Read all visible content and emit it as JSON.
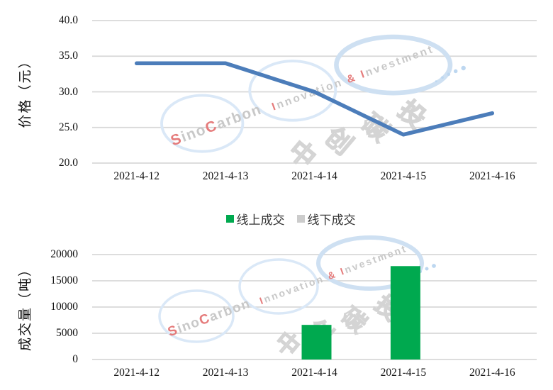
{
  "watermark": {
    "brand_en": "SinoCarbon",
    "tagline": "Innovation & Investment",
    "brand_cn": "中创碳投",
    "ring_color": "#DAE8F7",
    "ring_color_strong": "#CEE0F2",
    "letter_gray": "#C8C8C8",
    "letter_red": "#E57B7B",
    "cn_outline": "#D4D4D4",
    "dot_color": "#BDD7F0"
  },
  "legend": {
    "items": [
      {
        "label": "线上成交",
        "color": "#00A94F"
      },
      {
        "label": "线下成交",
        "color": "#CCCCCC"
      }
    ]
  },
  "chart_data": [
    {
      "type": "line",
      "title": "",
      "ylabel": "价格（元）",
      "xlabel": "",
      "categories": [
        "2021-4-12",
        "2021-4-13",
        "2021-4-14",
        "2021-4-15",
        "2021-4-16"
      ],
      "series": [
        {
          "name": "价格",
          "color": "#4C7DBA",
          "values": [
            34,
            34,
            30,
            24,
            27
          ]
        }
      ],
      "ylim": [
        20,
        40
      ],
      "yticks": {
        "values": [
          40,
          35,
          30,
          25,
          20
        ],
        "labels": [
          "40.0",
          "35.0",
          "30.0",
          "25.0",
          "20.0"
        ]
      },
      "grid": true,
      "legend_position": "none"
    },
    {
      "type": "bar",
      "title": "",
      "ylabel": "成交量（吨）",
      "xlabel": "",
      "categories": [
        "2021-4-12",
        "2021-4-13",
        "2021-4-14",
        "2021-4-15",
        "2021-4-16"
      ],
      "series": [
        {
          "name": "线上成交",
          "color": "#00A94F",
          "values": [
            0,
            0,
            6600,
            17800,
            0
          ]
        },
        {
          "name": "线下成交",
          "color": "#CCCCCC",
          "values": [
            0,
            0,
            0,
            0,
            0
          ]
        }
      ],
      "ylim": [
        0,
        20000
      ],
      "yticks": {
        "values": [
          20000,
          15000,
          10000,
          5000,
          0
        ],
        "labels": [
          "20000",
          "15000",
          "10000",
          "5000",
          "0"
        ]
      },
      "grid": true,
      "legend_position": "top"
    }
  ]
}
